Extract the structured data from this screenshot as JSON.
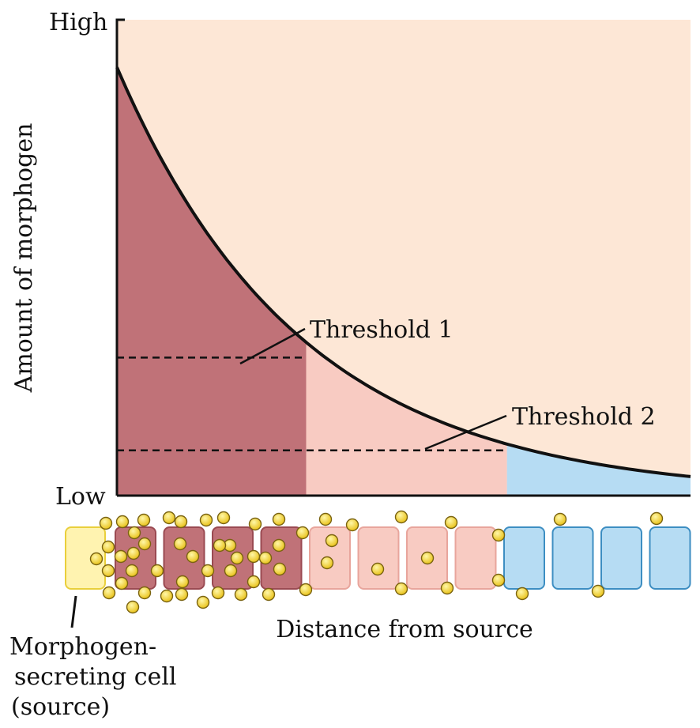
{
  "axes": {
    "y_title": "Amount of morphogen",
    "y_high_label": "High",
    "y_low_label": "Low",
    "x_title": "Distance from source"
  },
  "thresholds": [
    {
      "label": "Threshold 1",
      "level": 0.29
    },
    {
      "label": "Threshold 2",
      "level": 0.095
    }
  ],
  "curve": {
    "start_level": 0.9,
    "end_level": 0.04,
    "threshold1_crossing": 0.33,
    "threshold2_crossing": 0.68
  },
  "regions": [
    {
      "name": "high-response",
      "color": "#c07278"
    },
    {
      "name": "mid-response",
      "color": "#f8cbc2"
    },
    {
      "name": "low-response",
      "color": "#b6dcf3"
    }
  ],
  "background_color": "#fde7d6",
  "source_cell": {
    "label_lines": [
      "Morphogen-",
      "secreting cell",
      "(source)"
    ],
    "color": "#fff3b0"
  },
  "cells": [
    {
      "type": "high"
    },
    {
      "type": "high"
    },
    {
      "type": "high"
    },
    {
      "type": "high"
    },
    {
      "type": "mid"
    },
    {
      "type": "mid"
    },
    {
      "type": "mid"
    },
    {
      "type": "mid"
    },
    {
      "type": "low"
    },
    {
      "type": "low"
    },
    {
      "type": "low"
    },
    {
      "type": "low"
    }
  ]
}
